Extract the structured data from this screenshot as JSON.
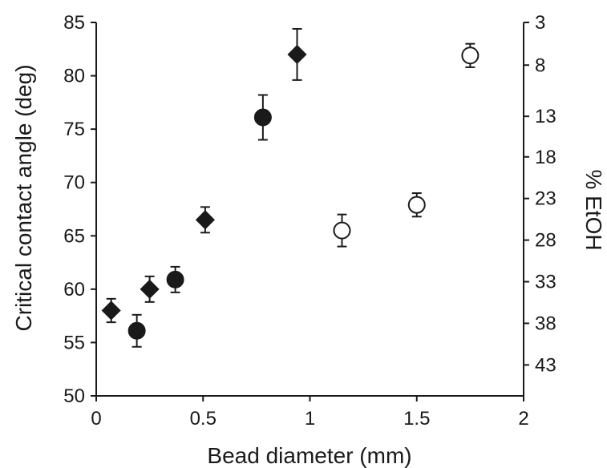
{
  "chart_data": {
    "type": "scatter",
    "title": "",
    "xlabel": "Bead diameter (mm)",
    "ylabel": "Critical contact angle (deg)",
    "y2label": "% EtOH",
    "xlim": [
      0,
      2
    ],
    "ylim": [
      50,
      85
    ],
    "xticks": [
      0,
      0.5,
      1,
      1.5,
      2
    ],
    "xtick_labels": [
      "0",
      "0.5",
      "1",
      "1.5",
      "2"
    ],
    "yticks": [
      50,
      55,
      60,
      65,
      70,
      75,
      80,
      85
    ],
    "ytick_labels": [
      "50",
      "55",
      "60",
      "65",
      "70",
      "75",
      "80",
      "85"
    ],
    "y2ticks": [
      {
        "label": "3",
        "at_y": 85
      },
      {
        "label": "8",
        "at_y": 81
      },
      {
        "label": "13",
        "at_y": 76.2
      },
      {
        "label": "18",
        "at_y": 72.4
      },
      {
        "label": "23",
        "at_y": 68.5
      },
      {
        "label": "28",
        "at_y": 64.6
      },
      {
        "label": "33",
        "at_y": 60.7
      },
      {
        "label": "38",
        "at_y": 56.8
      },
      {
        "label": "43",
        "at_y": 52.9
      }
    ],
    "grid": false,
    "legend": "none",
    "series": [
      {
        "marker": "diamond",
        "fill": "#1a1a1a",
        "points": [
          {
            "x": 0.07,
            "y": 58.0,
            "err": 1.1
          },
          {
            "x": 0.25,
            "y": 60.0,
            "err": 1.2
          },
          {
            "x": 0.51,
            "y": 66.5,
            "err": 1.2
          },
          {
            "x": 0.94,
            "y": 82.0,
            "err": 2.4
          }
        ]
      },
      {
        "marker": "circle",
        "fill": "#1a1a1a",
        "points": [
          {
            "x": 0.19,
            "y": 56.1,
            "err": 1.5
          },
          {
            "x": 0.37,
            "y": 60.9,
            "err": 1.2
          },
          {
            "x": 0.78,
            "y": 76.1,
            "err": 2.1
          }
        ]
      },
      {
        "marker": "circle",
        "fill": "#ffffff",
        "points": [
          {
            "x": 1.15,
            "y": 65.5,
            "err": 1.5
          },
          {
            "x": 1.5,
            "y": 67.9,
            "err": 1.1
          },
          {
            "x": 1.75,
            "y": 81.9,
            "err": 1.1
          }
        ]
      }
    ]
  }
}
